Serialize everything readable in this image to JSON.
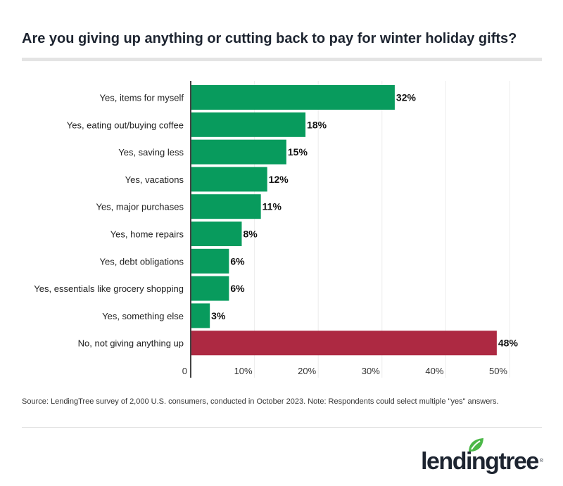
{
  "title": "Are you giving up anything or cutting back to pay for winter holiday gifts?",
  "source": "Source: LendingTree survey of 2,000 U.S. consumers, conducted in October 2023. Note: Respondents could select multiple \"yes\" answers.",
  "logo": {
    "text": "lendingtree",
    "reg": "®",
    "leaf_color": "#4cb848"
  },
  "chart_data": {
    "type": "bar",
    "orientation": "horizontal",
    "categories": [
      "Yes, items for myself",
      "Yes, eating out/buying coffee",
      "Yes, saving less",
      "Yes, vacations",
      "Yes, major purchases",
      "Yes, home repairs",
      "Yes, debt obligations",
      "Yes, essentials like grocery shopping",
      "Yes, something else",
      "No, not giving anything up"
    ],
    "values": [
      32,
      18,
      15,
      12,
      11,
      8,
      6,
      6,
      3,
      48
    ],
    "data_labels": [
      "32%",
      "18%",
      "15%",
      "12%",
      "11%",
      "8%",
      "6%",
      "6%",
      "3%",
      "48%"
    ],
    "colors": [
      "#089b5d",
      "#089b5d",
      "#089b5d",
      "#089b5d",
      "#089b5d",
      "#089b5d",
      "#089b5d",
      "#089b5d",
      "#089b5d",
      "#ad2942"
    ],
    "xlim": [
      0,
      50
    ],
    "xticks": [
      0,
      10,
      20,
      30,
      40,
      50
    ],
    "xtick_labels": [
      "0",
      "10%",
      "20%",
      "30%",
      "40%",
      "50%"
    ],
    "grid": true,
    "legend": "none"
  }
}
